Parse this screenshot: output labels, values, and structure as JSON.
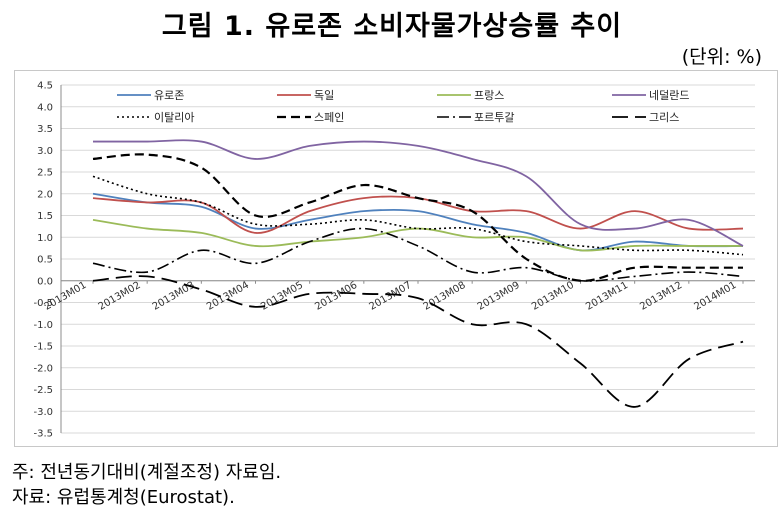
{
  "title": "그림 1. 유로존 소비자물가상승률 추이",
  "unit": "(단위: %)",
  "notes": {
    "note1": "주: 전년동기대비(계절조정) 자료임.",
    "note2": "자료: 유럽통계청(Eurostat)."
  },
  "chart_data": {
    "type": "line",
    "title": "그림 1. 유로존 소비자물가상승률 추이",
    "ylabel": "",
    "xlabel": "",
    "ylim": [
      -3.5,
      4.5
    ],
    "yticks": [
      4.5,
      4.0,
      3.5,
      3.0,
      2.5,
      2.0,
      1.5,
      1.0,
      0.5,
      0.0,
      -0.5,
      -1.0,
      -1.5,
      -2.0,
      -2.5,
      -3.0,
      -3.5
    ],
    "ytick_labels": [
      "4.5",
      "4.0",
      "3.5",
      "3.0",
      "2.5",
      "2.0",
      "1.5",
      "1.0",
      "0.5",
      "0.0",
      "-0.5",
      "-1.0",
      "-1.5",
      "-2.0",
      "-2.5",
      "-3.0",
      "-3.5"
    ],
    "categories": [
      "2013M01",
      "2013M02",
      "2013M03",
      "2013M04",
      "2013M05",
      "2013M06",
      "2013M07",
      "2013M08",
      "2013M09",
      "2013M10",
      "2013M11",
      "2013M12",
      "2014M01"
    ],
    "grid": true,
    "legend_position": "top",
    "series": [
      {
        "name": "유로존",
        "color": "#4f81bd",
        "dash": "solid",
        "width": 1.8,
        "values": [
          2.0,
          1.8,
          1.7,
          1.2,
          1.4,
          1.6,
          1.6,
          1.3,
          1.1,
          0.7,
          0.9,
          0.8,
          0.8
        ]
      },
      {
        "name": "독일",
        "color": "#c0504d",
        "dash": "solid",
        "width": 1.8,
        "values": [
          1.9,
          1.8,
          1.8,
          1.1,
          1.6,
          1.9,
          1.9,
          1.6,
          1.6,
          1.2,
          1.6,
          1.2,
          1.2
        ]
      },
      {
        "name": "프랑스",
        "color": "#9bbb59",
        "dash": "solid",
        "width": 1.8,
        "values": [
          1.4,
          1.2,
          1.1,
          0.8,
          0.9,
          1.0,
          1.2,
          1.0,
          1.0,
          0.7,
          0.8,
          0.8,
          0.8
        ]
      },
      {
        "name": "네덜란드",
        "color": "#8064a2",
        "dash": "solid",
        "width": 1.8,
        "values": [
          3.2,
          3.2,
          3.2,
          2.8,
          3.1,
          3.2,
          3.1,
          2.8,
          2.4,
          1.3,
          1.2,
          1.4,
          0.8
        ]
      },
      {
        "name": "이탈리아",
        "color": "#000000",
        "dash": "dot",
        "width": 1.6,
        "values": [
          2.4,
          2.0,
          1.8,
          1.3,
          1.3,
          1.4,
          1.2,
          1.2,
          0.9,
          0.8,
          0.7,
          0.7,
          0.6
        ]
      },
      {
        "name": "스페인",
        "color": "#000000",
        "dash": "dash",
        "width": 2.2,
        "values": [
          2.8,
          2.9,
          2.6,
          1.5,
          1.8,
          2.2,
          1.9,
          1.6,
          0.5,
          0.0,
          0.3,
          0.3,
          0.3
        ]
      },
      {
        "name": "포르투갈",
        "color": "#000000",
        "dash": "dashdot",
        "width": 1.6,
        "values": [
          0.4,
          0.2,
          0.7,
          0.4,
          0.9,
          1.2,
          0.8,
          0.2,
          0.3,
          0.0,
          0.1,
          0.2,
          0.1
        ]
      },
      {
        "name": "그리스",
        "color": "#000000",
        "dash": "longdash",
        "width": 1.8,
        "values": [
          0.0,
          0.1,
          -0.2,
          -0.6,
          -0.3,
          -0.3,
          -0.4,
          -1.0,
          -1.0,
          -1.9,
          -2.9,
          -1.8,
          -1.4
        ]
      }
    ]
  }
}
